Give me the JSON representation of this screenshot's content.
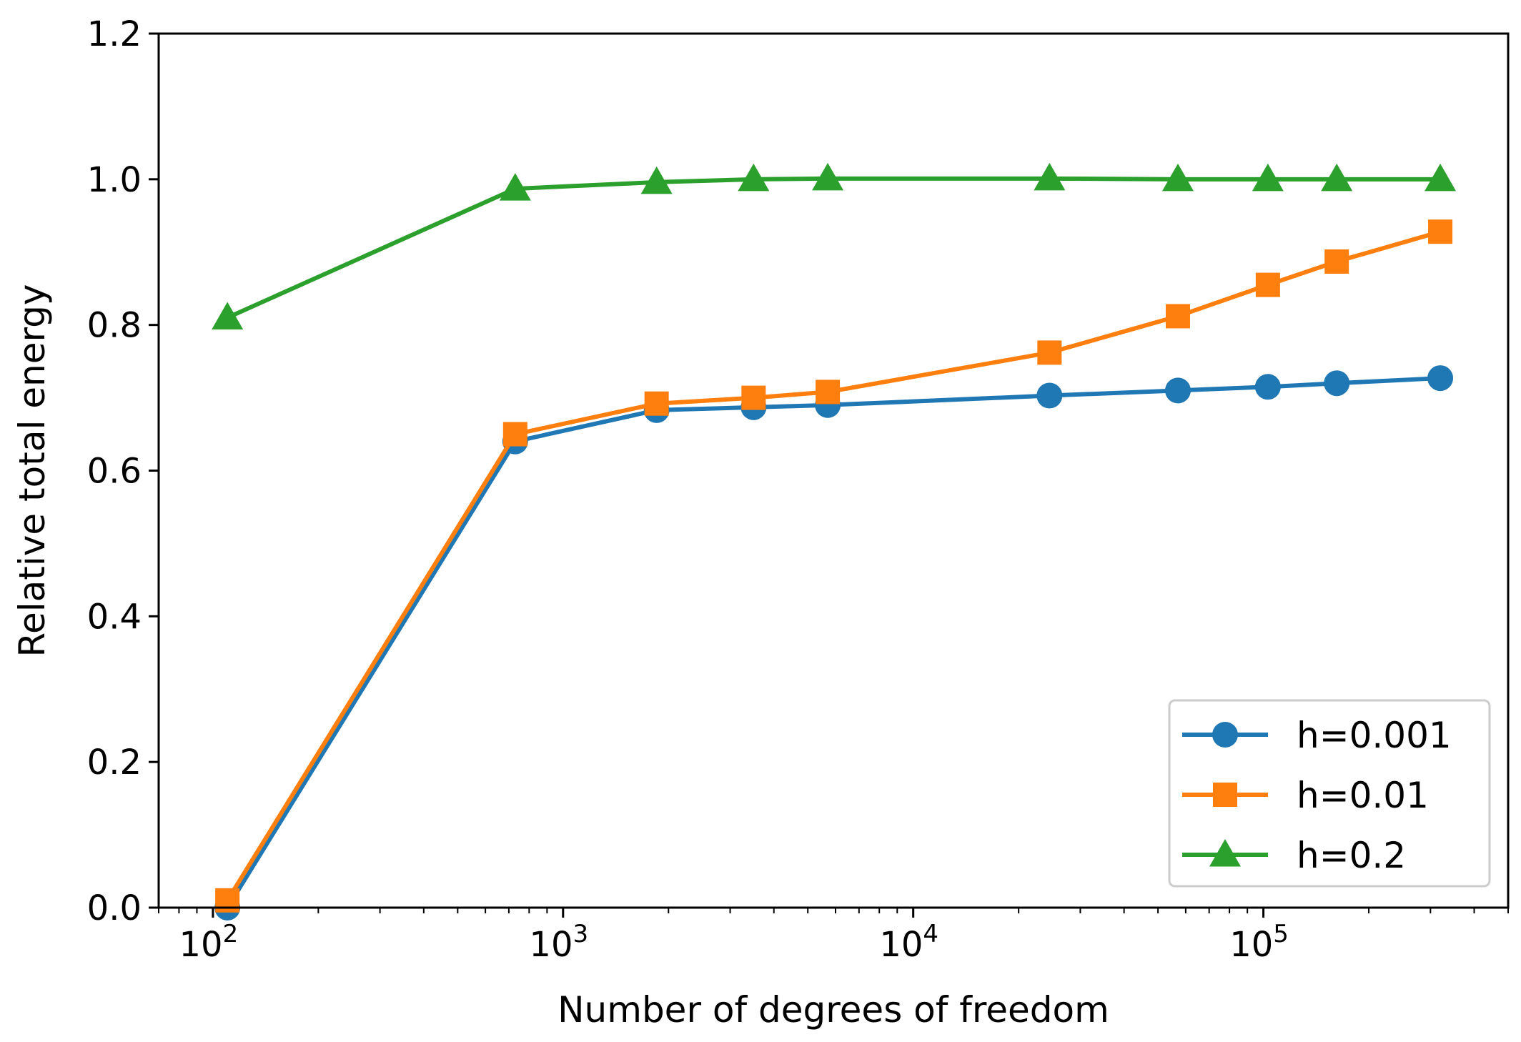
{
  "chart_data": {
    "type": "line",
    "title": "",
    "xlabel": "Number of degrees of freedom",
    "ylabel": "Relative total energy",
    "xscale": "log",
    "xlim": [
      70,
      500000
    ],
    "ylim": [
      0.0,
      1.2
    ],
    "grid": false,
    "legend_position": "lower-right",
    "x_ticks": [
      {
        "value": 100,
        "base": "10",
        "exp": "2"
      },
      {
        "value": 1000,
        "base": "10",
        "exp": "3"
      },
      {
        "value": 10000,
        "base": "10",
        "exp": "4"
      },
      {
        "value": 100000,
        "base": "10",
        "exp": "5"
      }
    ],
    "y_ticks": [
      {
        "value": 0.0,
        "label": "0.0"
      },
      {
        "value": 0.2,
        "label": "0.2"
      },
      {
        "value": 0.4,
        "label": "0.4"
      },
      {
        "value": 0.6,
        "label": "0.6"
      },
      {
        "value": 0.8,
        "label": "0.8"
      },
      {
        "value": 1.0,
        "label": "1.0"
      },
      {
        "value": 1.2,
        "label": "1.2"
      }
    ],
    "x": [
      110,
      730,
      1850,
      3500,
      5700,
      24500,
      57000,
      103000,
      162000,
      320000
    ],
    "series": [
      {
        "name": "h=0.001",
        "color": "#1f77b4",
        "marker": "circle",
        "values": [
          0.0,
          0.64,
          0.683,
          0.687,
          0.69,
          0.703,
          0.71,
          0.715,
          0.72,
          0.727
        ]
      },
      {
        "name": "h=0.01",
        "color": "#ff7f0e",
        "marker": "square",
        "values": [
          0.01,
          0.65,
          0.692,
          0.7,
          0.708,
          0.762,
          0.812,
          0.855,
          0.887,
          0.928
        ]
      },
      {
        "name": "h=0.2",
        "color": "#2ca02c",
        "marker": "triangle",
        "values": [
          0.81,
          0.987,
          0.996,
          1.0,
          1.001,
          1.001,
          1.0,
          1.0,
          1.0,
          1.0
        ]
      }
    ]
  }
}
